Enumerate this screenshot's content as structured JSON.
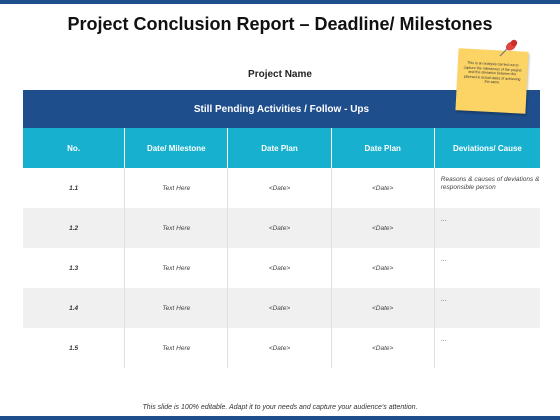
{
  "title": "Project Conclusion Report – Deadline/ Milestones",
  "project_name": "Project Name",
  "table": {
    "banner": "Still Pending Activities / Follow - Ups",
    "headers": [
      "No.",
      "Date/ Milestone",
      "Date Plan",
      "Date Plan",
      "Deviations/ Cause"
    ],
    "rows": [
      {
        "no": "1.1",
        "milestone": "Text Here",
        "plan1": "<Date>",
        "plan2": "<Date>",
        "dev": "Reasons & causes of deviations & responsible person"
      },
      {
        "no": "1.2",
        "milestone": "Text Here",
        "plan1": "<Date>",
        "plan2": "<Date>",
        "dev": "…"
      },
      {
        "no": "1.3",
        "milestone": "Text Here",
        "plan1": "<Date>",
        "plan2": "<Date>",
        "dev": "…"
      },
      {
        "no": "1.4",
        "milestone": "Text Here",
        "plan1": "<Date>",
        "plan2": "<Date>",
        "dev": "…"
      },
      {
        "no": "1.5",
        "milestone": "Text Here",
        "plan1": "<Date>",
        "plan2": "<Date>",
        "dev": "…"
      }
    ]
  },
  "sticky_note": "This is an analysis carried out to capture the milestones of the project and the deviation between the planned & actual dates of achieving the same",
  "footer": "This slide is 100% editable. Adapt it to your needs and capture your audience's attention.",
  "colors": {
    "banner": "#1f4e8c",
    "header": "#18b0cf",
    "note": "#fcd466",
    "pin": "#e0463f"
  },
  "icons": [
    "push-pin-icon"
  ]
}
